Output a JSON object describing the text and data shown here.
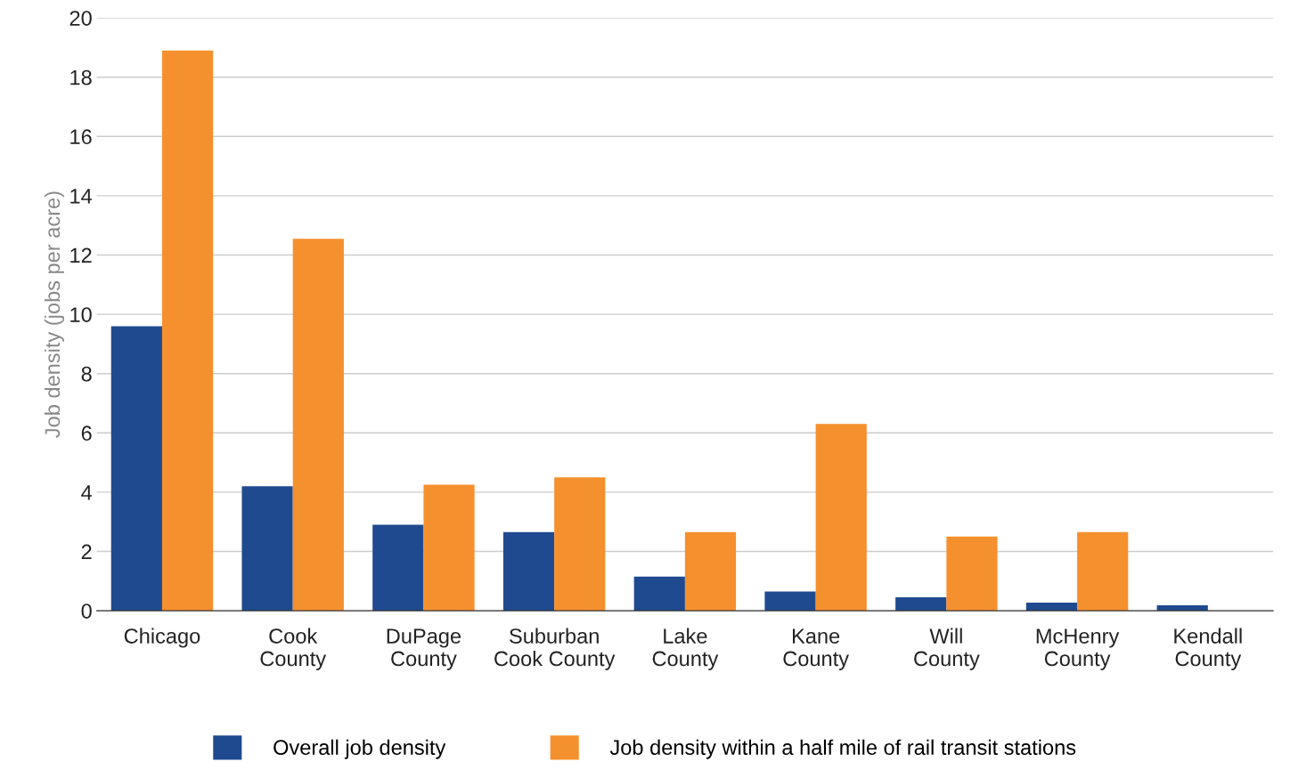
{
  "chart_data": {
    "type": "bar",
    "ylabel": "Job density (jobs per acre)",
    "categories": [
      "Chicago",
      "Cook\nCounty",
      "DuPage\nCounty",
      "Suburban\nCook County",
      "Lake\nCounty",
      "Kane\nCounty",
      "Will\nCounty",
      "McHenry\nCounty",
      "Kendall\nCounty"
    ],
    "series": [
      {
        "name": "Overall job density",
        "color": "#1f4a8f",
        "values": [
          9.6,
          4.2,
          2.9,
          2.65,
          1.15,
          0.65,
          0.45,
          0.27,
          0.18
        ]
      },
      {
        "name": "Job density within a half mile of rail transit stations",
        "color": "#f5902e",
        "values": [
          18.9,
          12.55,
          4.25,
          4.5,
          2.65,
          6.3,
          2.5,
          2.65,
          null
        ]
      }
    ],
    "ylim": [
      0,
      20
    ],
    "yticks": [
      0,
      2,
      4,
      6,
      8,
      10,
      12,
      14,
      16,
      18,
      20
    ],
    "grid": "y",
    "legend": "bottom"
  }
}
